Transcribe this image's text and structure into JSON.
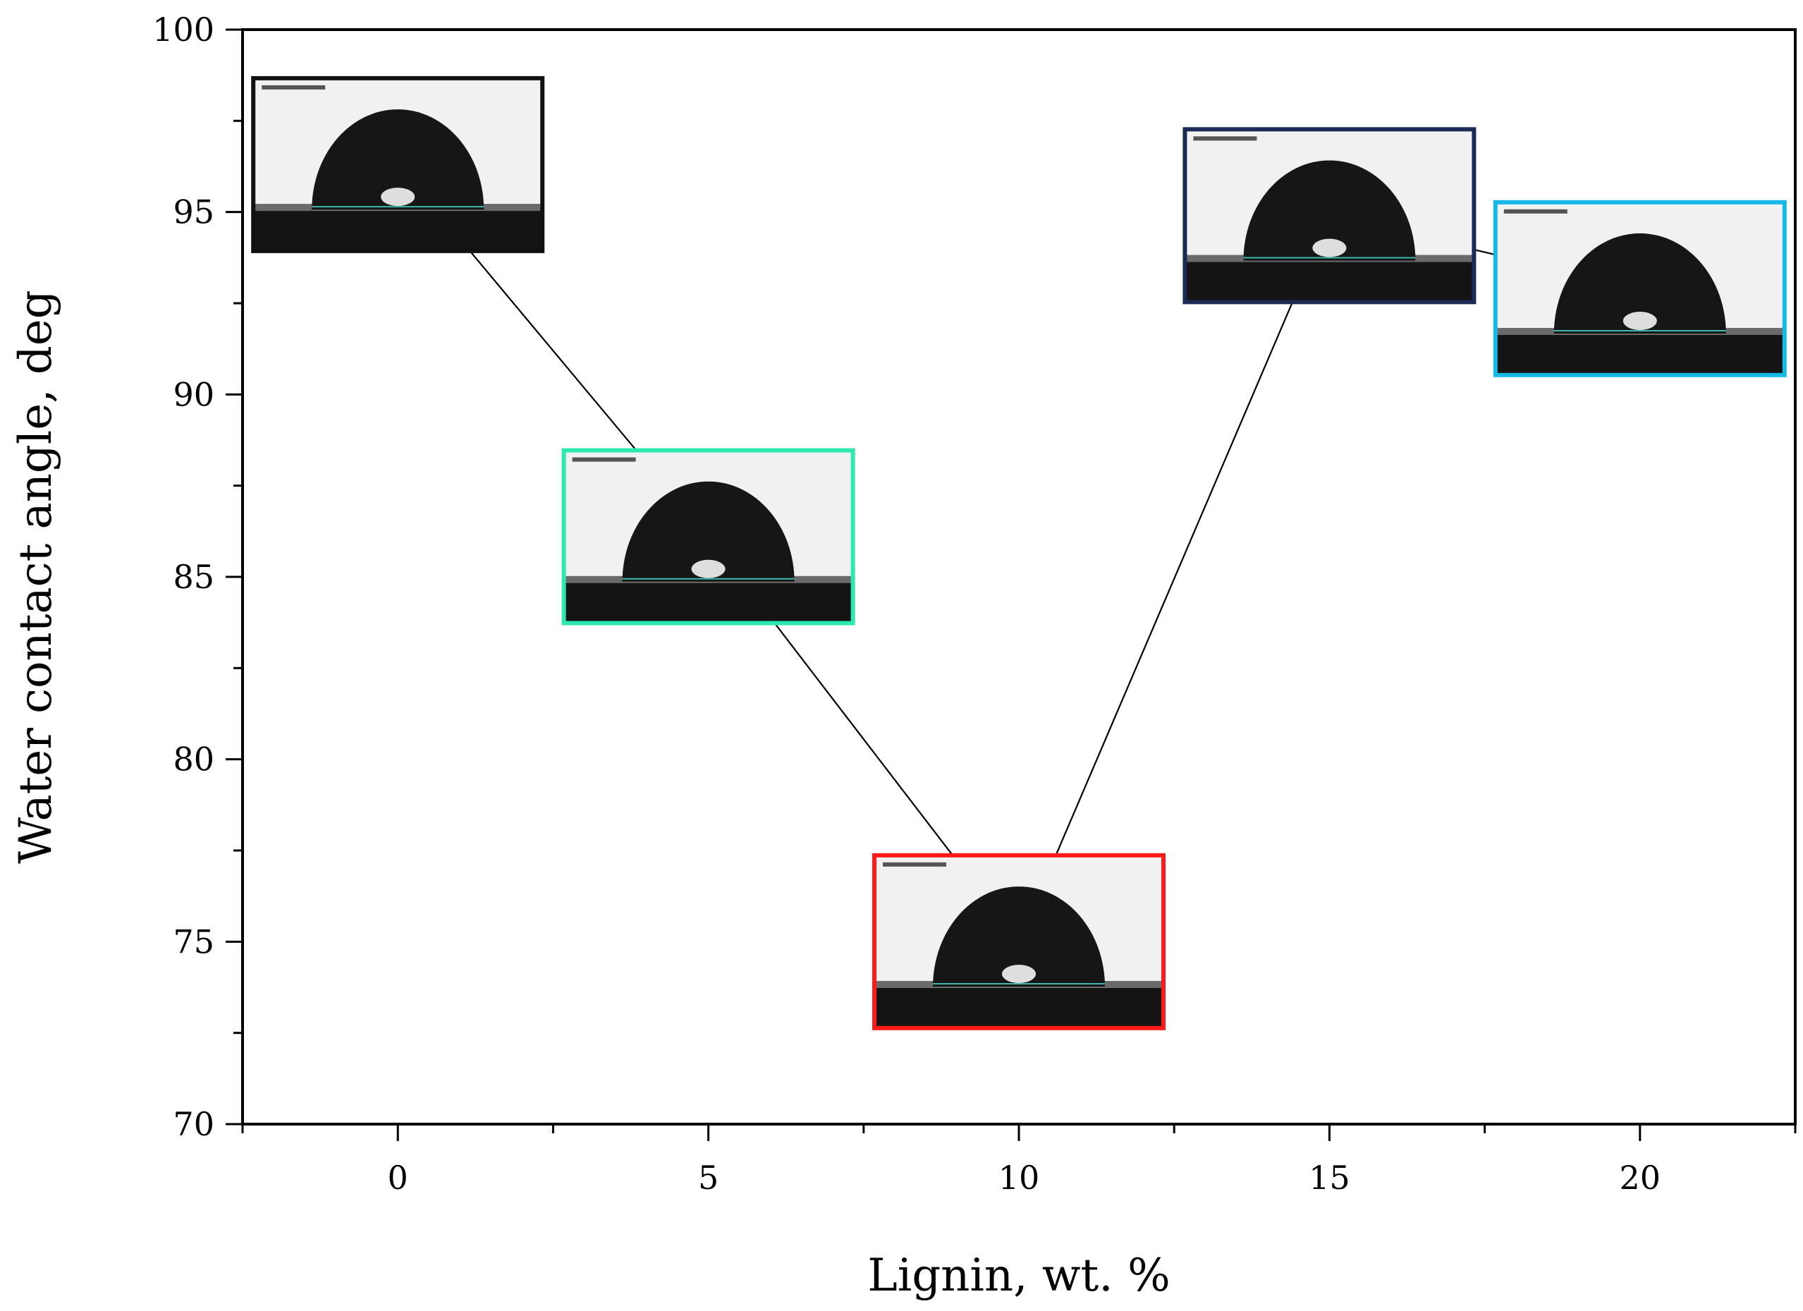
{
  "chart_data": {
    "type": "line",
    "title": "",
    "xlabel": "Lignin, wt. %",
    "ylabel": "Water contact angle, deg",
    "xlim": [
      -2.5,
      22.5
    ],
    "ylim": [
      70,
      100
    ],
    "x_ticks": [
      0,
      5,
      10,
      15,
      20
    ],
    "y_ticks": [
      70,
      75,
      80,
      85,
      90,
      95,
      100
    ],
    "x_tick_labels": [
      "0",
      "5",
      "10",
      "15",
      "20"
    ],
    "y_tick_labels": [
      "70",
      "75",
      "80",
      "85",
      "90",
      "95",
      "100"
    ],
    "grid": false,
    "legend": "none",
    "series": [
      {
        "x": [
          0,
          5,
          10,
          15,
          20
        ],
        "y": [
          96.3,
          86.1,
          75.0,
          94.9,
          92.9
        ],
        "color": "#000000"
      }
    ],
    "insets": [
      {
        "x": 0,
        "y": 96.3,
        "border_color": "#111111"
      },
      {
        "x": 5,
        "y": 86.1,
        "border_color": "#2ee8b0"
      },
      {
        "x": 10,
        "y": 75.0,
        "border_color": "#ff1a1a"
      },
      {
        "x": 15,
        "y": 94.9,
        "border_color": "#1a2a55"
      },
      {
        "x": 20,
        "y": 92.9,
        "border_color": "#18b8e6"
      }
    ]
  }
}
